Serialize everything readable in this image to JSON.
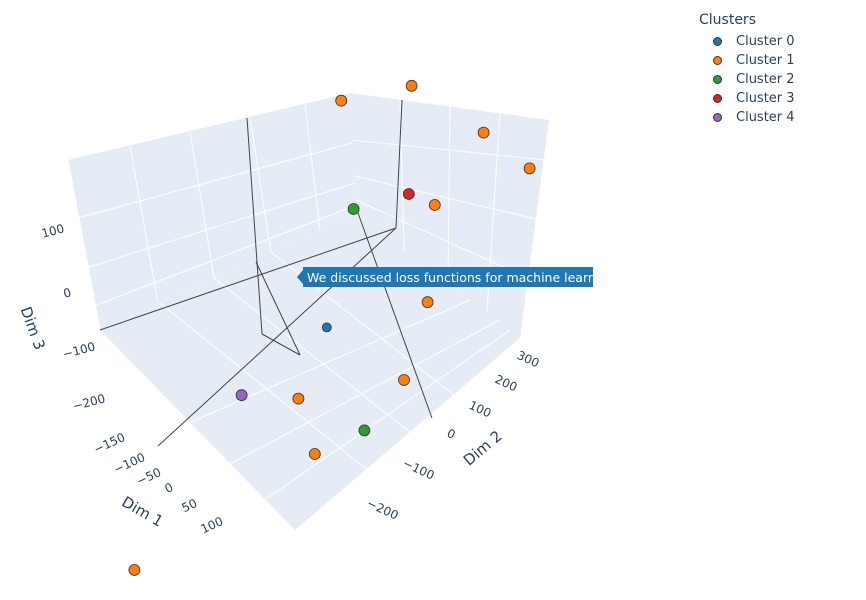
{
  "chart_data": {
    "type": "scatter3d",
    "title": "",
    "legend": {
      "title": "Clusters",
      "position": "top-right",
      "entries": [
        {
          "name": "Cluster 0",
          "color": "#1f77b4"
        },
        {
          "name": "Cluster 1",
          "color": "#ff7f0e"
        },
        {
          "name": "Cluster 2",
          "color": "#2ca02c"
        },
        {
          "name": "Cluster 3",
          "color": "#d62728"
        },
        {
          "name": "Cluster 4",
          "color": "#9467bd"
        }
      ]
    },
    "axes": {
      "x": {
        "title": "Dim 1",
        "ticks": [
          "−150",
          "−100",
          "−50",
          "0",
          "50",
          "100"
        ]
      },
      "y": {
        "title": "Dim 2",
        "ticks": [
          "−200",
          "−100",
          "0",
          "100",
          "200",
          "300"
        ]
      },
      "z": {
        "title": "Dim 3",
        "ticks": [
          "−200",
          "−100",
          "0",
          "100"
        ]
      }
    },
    "series": [
      {
        "name": "Cluster 0",
        "color": "#1f77b4",
        "points": [
          {
            "x": -20,
            "y": 40,
            "z": -5
          }
        ]
      },
      {
        "name": "Cluster 1",
        "color": "#ff7f0e",
        "points": [
          {
            "x": -140,
            "y": 200,
            "z": 180
          },
          {
            "x": -60,
            "y": 260,
            "z": 190
          },
          {
            "x": 60,
            "y": 280,
            "z": 150
          },
          {
            "x": 130,
            "y": 300,
            "z": 110
          },
          {
            "x": 40,
            "y": 200,
            "z": 90
          },
          {
            "x": 100,
            "y": 120,
            "z": 20
          },
          {
            "x": 110,
            "y": 60,
            "z": -50
          },
          {
            "x": -10,
            "y": -30,
            "z": -60
          },
          {
            "x": 40,
            "y": -50,
            "z": -110
          },
          {
            "x": -150,
            "y": -220,
            "z": -230
          }
        ]
      },
      {
        "name": "Cluster 2",
        "color": "#2ca02c",
        "points": [
          {
            "x": -70,
            "y": 150,
            "z": 80
          },
          {
            "x": 80,
            "y": 10,
            "z": -100
          }
        ]
      },
      {
        "name": "Cluster 3",
        "color": "#d62728",
        "points": [
          {
            "x": -10,
            "y": 200,
            "z": 90
          }
        ]
      },
      {
        "name": "Cluster 4",
        "color": "#9467bd",
        "points": [
          {
            "x": -110,
            "y": -40,
            "z": -80
          }
        ]
      }
    ],
    "hover": {
      "cluster": "Cluster 0",
      "text": "We discussed loss functions for machine learning"
    }
  }
}
